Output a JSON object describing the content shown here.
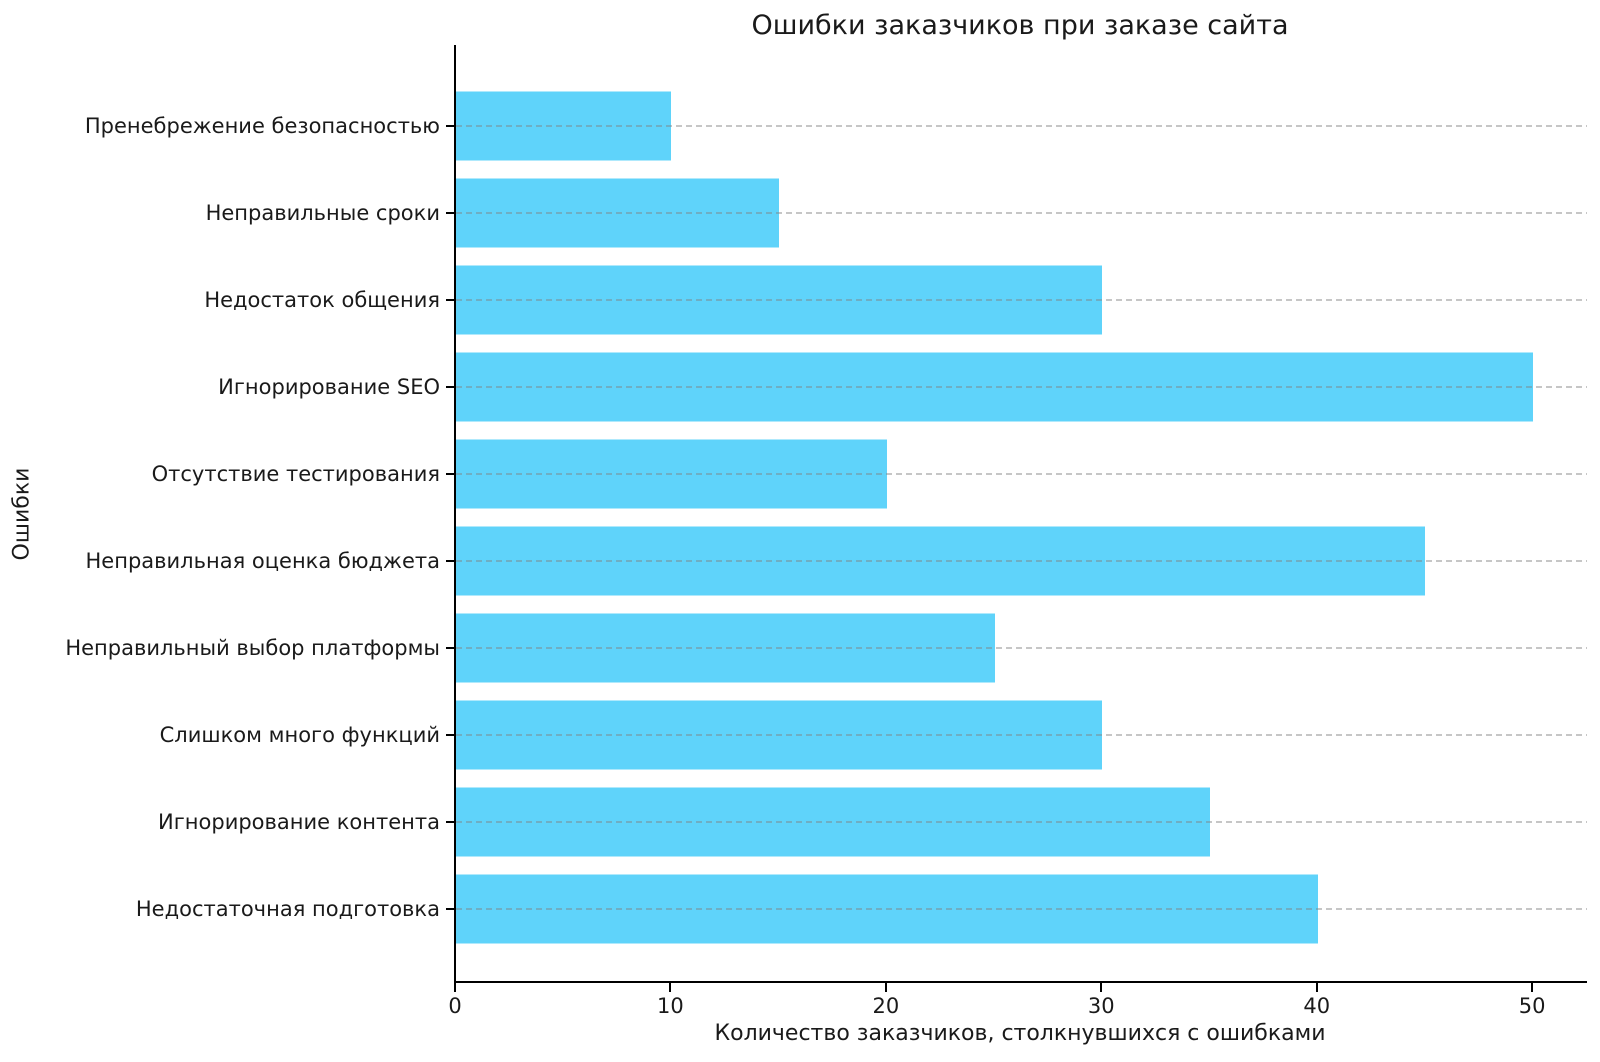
{
  "chart_data": {
    "type": "bar",
    "orientation": "horizontal",
    "title": "Ошибки заказчиков при заказе сайта",
    "xlabel": "Количество заказчиков, столкнувшихся с ошибками",
    "ylabel": "Ошибки",
    "categories": [
      "Пренебрежение безопасностью",
      "Неправильные сроки",
      "Недостаток общения",
      "Игнорирование SEO",
      "Отсутствие тестирования",
      "Неправильная оценка бюджета",
      "Неправильный выбор платформы",
      "Слишком много функций",
      "Игнорирование контента",
      "Недостаточная подготовка"
    ],
    "values": [
      10,
      15,
      30,
      50,
      20,
      45,
      25,
      30,
      35,
      40
    ],
    "xticks": [
      0,
      10,
      20,
      30,
      40,
      50
    ],
    "xlim": [
      0,
      52.5
    ],
    "grid": "horizontal dashed gridline at each category",
    "legend": null,
    "bar_color": "#5FD3FA",
    "spine_color": "#000000",
    "grid_color": "#c9c9c9",
    "text_color": "#1a1a1a"
  }
}
